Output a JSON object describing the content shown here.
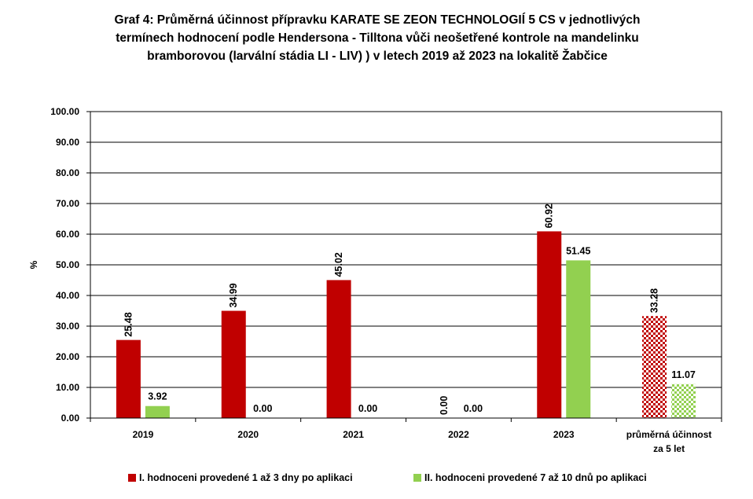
{
  "title_lines": [
    "Graf 4: Průměrná účinnost přípravku KARATE SE ZEON TECHNOLOGIÍ 5 CS v jednotlivých",
    "termínech hodnocení podle Hendersona - Tilltona vůči neošetřené kontrole na mandelinku",
    "bramborovou (larvální stádia LI - LIV)  ) v letech 2019 až 2023 na lokalitě Žabčice"
  ],
  "chart_data": {
    "type": "bar",
    "title": "Graf 4: Průměrná účinnost přípravku KARATE SE ZEON TECHNOLOGIÍ 5 CS v jednotlivých termínech hodnocení podle Hendersona - Tilltona vůči neošetřené kontrole na mandelinku bramborovou (larvální stádia LI - LIV)  ) v letech 2019 až 2023 na lokalitě Žabčice",
    "ylabel": "%",
    "xlabel": "",
    "ylim": [
      0,
      100
    ],
    "y_ticks": [
      "0.00",
      "10.00",
      "20.00",
      "30.00",
      "40.00",
      "50.00",
      "60.00",
      "70.00",
      "80.00",
      "90.00",
      "100.00"
    ],
    "categories": [
      [
        "2019"
      ],
      [
        "2020"
      ],
      [
        "2021"
      ],
      [
        "2022"
      ],
      [
        "2023"
      ],
      [
        "průměrná účinnost",
        "za 5 let"
      ]
    ],
    "series": [
      {
        "name": "I. hodnoceni provedené 1 až 3 dny po aplikaci",
        "values": [
          25.48,
          34.99,
          45.02,
          0.0,
          60.92,
          33.28
        ],
        "labels": [
          "25.48",
          "34.99",
          "45.02",
          "0.00",
          "60.92",
          "33.28"
        ],
        "color": "#c00000",
        "label_rotated": true
      },
      {
        "name": "II. hodnoceni provedené 7 až 10 dnů po aplikaci",
        "values": [
          3.92,
          0.0,
          0.0,
          0.0,
          51.45,
          11.07
        ],
        "labels": [
          "3.92",
          "0.00",
          "0.00",
          "0.00",
          "51.45",
          "11.07"
        ],
        "color": "#92d050",
        "label_rotated": false
      }
    ],
    "checkered_last_category": true,
    "grid": true,
    "legend": "bottom"
  }
}
